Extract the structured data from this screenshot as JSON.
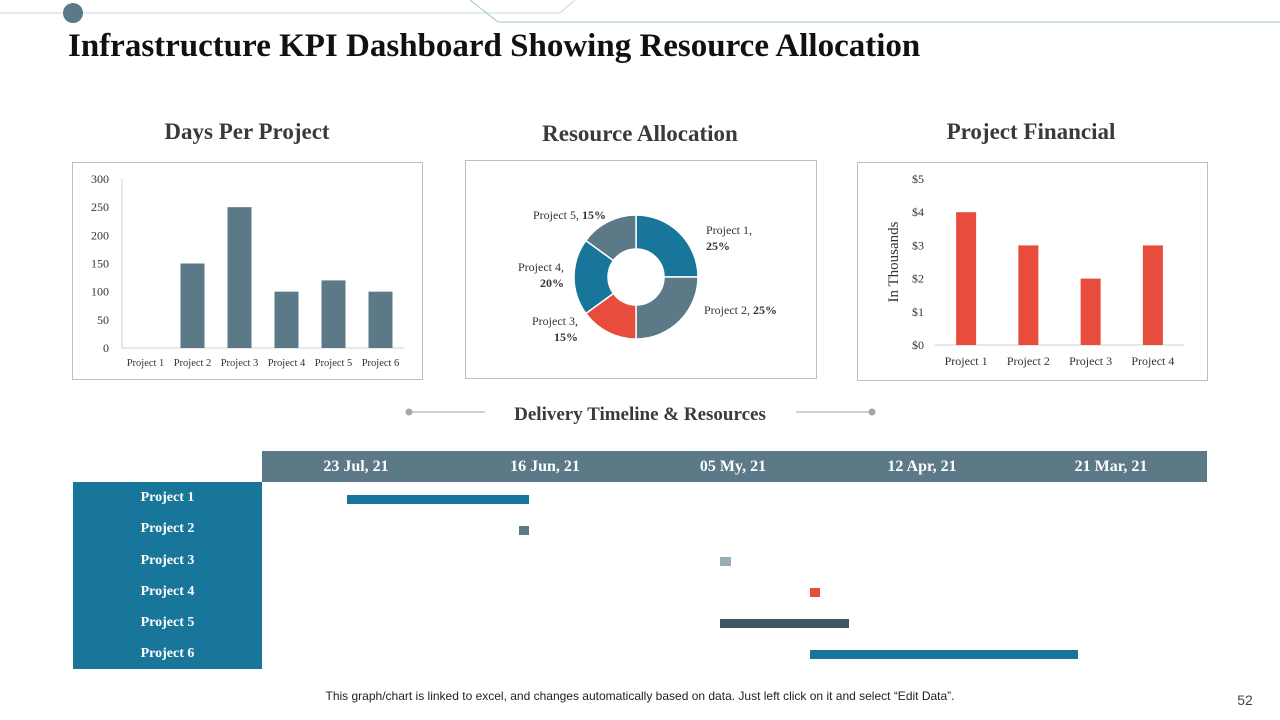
{
  "page": {
    "title": "Infrastructure KPI Dashboard Showing Resource Allocation",
    "footnote": "This graph/chart is linked to excel, and changes automatically based on data. Just left click on it and select “Edit Data”.",
    "page_number": "52"
  },
  "colors": {
    "slate": "#5b7987",
    "blue": "#18769b",
    "red": "#e74c3c",
    "light_slate": "#98aeb5",
    "dark_slate": "#3f5763"
  },
  "chart_data": [
    {
      "type": "bar",
      "title": "Days Per Project",
      "categories": [
        "Project 1",
        "Project 2",
        "Project 3",
        "Project 4",
        "Project 5",
        "Project 6"
      ],
      "values": [
        0,
        150,
        250,
        100,
        120,
        100
      ],
      "ylim": [
        0,
        300
      ],
      "yticks": [
        "0",
        "50",
        "100",
        "150",
        "200",
        "250",
        "300"
      ],
      "xlabel": "",
      "ylabel": ""
    },
    {
      "type": "pie",
      "title": "Resource Allocation",
      "donut": true,
      "slices": [
        {
          "label": "Project 1,",
          "pct": "25%",
          "value": 25,
          "color": "#18769b"
        },
        {
          "label": "Project 2,",
          "pct": "25%",
          "value": 25,
          "color": "#5b7987"
        },
        {
          "label": "Project 3,",
          "pct": "15%",
          "value": 15,
          "color": "#e74c3c"
        },
        {
          "label": "Project 4,",
          "pct": "20%",
          "value": 20,
          "color": "#18769b"
        },
        {
          "label": "Project 5,",
          "pct": "15%",
          "value": 15,
          "color": "#5b7987"
        }
      ]
    },
    {
      "type": "bar",
      "title": "Project Financial",
      "categories": [
        "Project 1",
        "Project 2",
        "Project 3",
        "Project 4"
      ],
      "values": [
        4,
        3,
        2,
        3
      ],
      "ylim": [
        0,
        5
      ],
      "yticks": [
        "$0",
        "$1",
        "$2",
        "$3",
        "$4",
        "$5"
      ],
      "ylabel": "In Thousands",
      "xlabel": ""
    },
    {
      "type": "gantt",
      "title": "Delivery Timeline  & Resources",
      "date_headers": [
        "23 Jul, 21",
        "16 Jun, 21",
        "05 My, 21",
        "12 Apr, 21",
        "21 Mar, 21"
      ],
      "tasks": [
        {
          "label": "Project 1",
          "start": 0.137,
          "end": 0.561,
          "color": "#18769b"
        },
        {
          "label": "Project 2",
          "start": 0.537,
          "end": 0.561,
          "color": "#5b7987"
        },
        {
          "label": "Project 3",
          "start": 1.006,
          "end": 1.031,
          "color": "#98aeb5"
        },
        {
          "label": "Project 4",
          "start": 1.215,
          "end": 1.239,
          "color": "#e74c3c"
        },
        {
          "label": "Project 5",
          "start": 1.006,
          "end": 1.307,
          "color": "#3f5763"
        },
        {
          "label": "Project 6",
          "start": 1.215,
          "end": 1.839,
          "color": "#18769b"
        }
      ]
    }
  ]
}
